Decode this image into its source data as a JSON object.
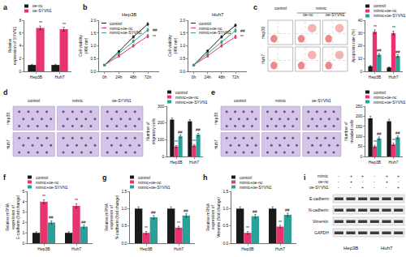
{
  "chart_data": [
    {
      "panel": "a",
      "type": "bar",
      "y_label": "Relative expression of SYVN1",
      "categories": [
        "Hep3B",
        "Huh7"
      ],
      "series": [
        {
          "name": "oe-nc",
          "color": "#1a1a1a",
          "values": [
            1.0,
            1.0
          ],
          "errors": [
            0.1,
            0.1
          ]
        },
        {
          "name": "oe-SYVN1",
          "color": "#e8336e",
          "values": [
            6.8,
            6.6
          ],
          "errors": [
            0.3,
            0.3
          ],
          "significance": [
            "**",
            "**"
          ]
        }
      ],
      "ylim": [
        0,
        8
      ],
      "yticks": [
        0,
        2,
        4,
        6,
        8
      ],
      "grid": false,
      "legend": "top"
    },
    {
      "panel": "b",
      "type": "line",
      "title": "Hep3B",
      "y_label": "Cell viability (490 nm)",
      "categories": [
        "0h",
        "24h",
        "48h",
        "72h"
      ],
      "series": [
        {
          "name": "control",
          "color": "#1a1a1a",
          "values": [
            0.25,
            0.78,
            1.35,
            1.85
          ],
          "errors": [
            0.02,
            0.04,
            0.05,
            0.06
          ]
        },
        {
          "name": "mimic+oe-nc",
          "color": "#e8336e",
          "values": [
            0.25,
            0.6,
            1.0,
            1.38
          ],
          "errors": [
            0.02,
            0.04,
            0.05,
            0.06
          ],
          "significance": [
            null,
            null,
            null,
            "**"
          ]
        },
        {
          "name": "mimic+oe-SYVN1",
          "color": "#2aa198",
          "values": [
            0.25,
            0.7,
            1.18,
            1.62
          ],
          "errors": [
            0.02,
            0.04,
            0.05,
            0.06
          ],
          "significance": [
            null,
            null,
            null,
            "##"
          ]
        }
      ],
      "ylim": [
        0,
        2
      ],
      "yticks": [
        {
          "value": 0,
          "label": "0.0"
        },
        0.5,
        {
          "value": 1,
          "label": "1.0"
        },
        1.5,
        {
          "value": 2,
          "label": "2.0"
        }
      ],
      "grid": false,
      "legend": "top left",
      "marker": "circle"
    },
    {
      "type": "line",
      "title": "Huh7",
      "y_label": "Cell viability (490 nm)",
      "categories": [
        "0h",
        "24h",
        "48h",
        "72h"
      ],
      "series": [
        {
          "name": "control",
          "color": "#1a1a1a",
          "values": [
            0.25,
            0.8,
            1.35,
            1.8
          ],
          "errors": [
            0.02,
            0.04,
            0.05,
            0.06
          ]
        },
        {
          "name": "mimic+oe-nc",
          "color": "#e8336e",
          "values": [
            0.25,
            0.6,
            1.0,
            1.35
          ],
          "errors": [
            0.02,
            0.04,
            0.05,
            0.06
          ],
          "significance": [
            null,
            null,
            null,
            "**"
          ]
        },
        {
          "name": "mimic+oe-SYVN1",
          "color": "#2aa198",
          "values": [
            0.25,
            0.7,
            1.15,
            1.6
          ],
          "errors": [
            0.02,
            0.04,
            0.05,
            0.06
          ],
          "significance": [
            null,
            null,
            null,
            "##"
          ]
        }
      ],
      "ylim": [
        0,
        2
      ],
      "yticks": [
        {
          "value": 0,
          "label": "0.0"
        },
        0.5,
        {
          "value": 1,
          "label": "1.0"
        },
        1.5,
        {
          "value": 2,
          "label": "2.0"
        }
      ],
      "grid": false,
      "legend": "top left",
      "marker": "circle"
    },
    {
      "panel": "c",
      "type": "bar",
      "y_label": "Apoptosis rate (%)",
      "categories": [
        "Hep3B",
        "Huh7"
      ],
      "series": [
        {
          "name": "control",
          "color": "#1a1a1a",
          "values": [
            4,
            3
          ],
          "errors": [
            0.6,
            0.5
          ]
        },
        {
          "name": "mimic+oe-nc",
          "color": "#e8336e",
          "values": [
            31,
            30
          ],
          "errors": [
            1.5,
            1.5
          ],
          "significance": [
            "**",
            "**"
          ]
        },
        {
          "name": "mimic+oe-SYVN1",
          "color": "#2aa198",
          "values": [
            13,
            12
          ],
          "errors": [
            1.0,
            1.0
          ],
          "significance": [
            "##",
            "##"
          ]
        }
      ],
      "ylim": [
        0,
        40
      ],
      "yticks": [
        0,
        10,
        20,
        30,
        40
      ],
      "grid": false,
      "legend": "top"
    },
    {
      "panel": "d",
      "type": "bar",
      "y_label": "Number of migratory cells",
      "categories": [
        "Hep3B",
        "Huh7"
      ],
      "series": [
        {
          "name": "control",
          "color": "#1a1a1a",
          "values": [
            220,
            210
          ],
          "errors": [
            10,
            10
          ]
        },
        {
          "name": "mimic+oe-nc",
          "color": "#e8336e",
          "values": [
            60,
            65
          ],
          "errors": [
            6,
            6
          ],
          "significance": [
            "**",
            "**"
          ]
        },
        {
          "name": "mimic+oe-SYVN1",
          "color": "#2aa198",
          "values": [
            120,
            130
          ],
          "errors": [
            8,
            8
          ],
          "significance": [
            "##",
            "##"
          ]
        }
      ],
      "ylim": [
        0,
        300
      ],
      "yticks": [
        0,
        100,
        200,
        300
      ],
      "grid": false,
      "legend": "top"
    },
    {
      "panel": "e",
      "type": "bar",
      "y_label": "Number of invaded cells",
      "categories": [
        "Hep3B",
        "Huh7"
      ],
      "series": [
        {
          "name": "control",
          "color": "#1a1a1a",
          "values": [
            190,
            175
          ],
          "errors": [
            10,
            10
          ]
        },
        {
          "name": "mimic+oe-nc",
          "color": "#e8336e",
          "values": [
            50,
            60
          ],
          "errors": [
            6,
            6
          ],
          "significance": [
            "**",
            "**"
          ]
        },
        {
          "name": "mimic+oe-SYVN1",
          "color": "#2aa198",
          "values": [
            90,
            95
          ],
          "errors": [
            7,
            7
          ],
          "significance": [
            "##",
            "##"
          ]
        }
      ],
      "ylim": [
        0,
        250
      ],
      "yticks": [
        0,
        50,
        100,
        150,
        200,
        250
      ],
      "grid": false,
      "legend": "top"
    },
    {
      "panel": "f",
      "type": "bar",
      "y_label": "Relative mRNA expression of E-cadherin (fold change)",
      "categories": [
        "Hep3B",
        "Huh7"
      ],
      "series": [
        {
          "name": "control",
          "color": "#1a1a1a",
          "values": [
            1.0,
            1.0
          ],
          "errors": [
            0.1,
            0.1
          ]
        },
        {
          "name": "mimic+oe-nc",
          "color": "#e8336e",
          "values": [
            4.0,
            3.6
          ],
          "errors": [
            0.2,
            0.2
          ],
          "significance": [
            "**",
            "**"
          ]
        },
        {
          "name": "mimic+oe-SYVN1",
          "color": "#2aa198",
          "values": [
            2.0,
            1.6
          ],
          "errors": [
            0.15,
            0.15
          ],
          "significance": [
            "##",
            "##"
          ]
        }
      ],
      "ylim": [
        0,
        5
      ],
      "yticks": [
        0,
        1,
        2,
        3,
        4,
        5
      ],
      "grid": false,
      "legend": "top"
    },
    {
      "panel": "g",
      "type": "bar",
      "y_label": "Relative mRNA expression of N-cadherin (fold change)",
      "categories": [
        "Hep3B",
        "Huh7"
      ],
      "series": [
        {
          "name": "control",
          "color": "#1a1a1a",
          "values": [
            1.0,
            1.0
          ],
          "errors": [
            0.05,
            0.05
          ]
        },
        {
          "name": "mimic+oe-nc",
          "color": "#e8336e",
          "values": [
            0.3,
            0.45
          ],
          "errors": [
            0.04,
            0.04
          ],
          "significance": [
            "**",
            "**"
          ]
        },
        {
          "name": "mimic+oe-SYVN1",
          "color": "#2aa198",
          "values": [
            0.75,
            0.8
          ],
          "errors": [
            0.05,
            0.05
          ],
          "significance": [
            "##",
            "##"
          ]
        }
      ],
      "ylim": [
        0,
        1.5
      ],
      "yticks": [
        {
          "value": 0,
          "label": "0.0"
        },
        0.5,
        {
          "value": 1,
          "label": "1.0"
        },
        1.5
      ],
      "grid": false,
      "legend": "top"
    },
    {
      "panel": "h",
      "type": "bar",
      "y_label": "Relative mRNA expression of Vimentin (fold change)",
      "categories": [
        "Hep3B",
        "Huh7"
      ],
      "series": [
        {
          "name": "control",
          "color": "#1a1a1a",
          "values": [
            1.0,
            1.0
          ],
          "errors": [
            0.05,
            0.05
          ]
        },
        {
          "name": "mimic+oe-nc",
          "color": "#e8336e",
          "values": [
            0.3,
            0.48
          ],
          "errors": [
            0.04,
            0.04
          ],
          "significance": [
            "**",
            "**"
          ]
        },
        {
          "name": "mimic+oe-SYVN1",
          "color": "#2aa198",
          "values": [
            0.78,
            0.82
          ],
          "errors": [
            0.05,
            0.05
          ],
          "significance": [
            "##",
            "##"
          ]
        }
      ],
      "ylim": [
        0,
        1.5
      ],
      "yticks": [
        {
          "value": 0,
          "label": "0.0"
        },
        0.5,
        {
          "value": 1,
          "label": "1.0"
        },
        1.5
      ],
      "grid": false,
      "legend": "top"
    }
  ],
  "images": [
    {
      "panel": "c",
      "type": "flow_cytometry",
      "header": "mimic",
      "columns": [
        "control",
        "oe-nc",
        "oe-SYVN1"
      ],
      "rows": [
        "Hep3B",
        "Huh7"
      ]
    },
    {
      "panel": "d",
      "type": "micrograph",
      "columns": [
        "control",
        "mimic",
        "oe-SYVN1"
      ],
      "rows": [
        "Hep3B",
        "Huh7"
      ]
    },
    {
      "panel": "e",
      "type": "micrograph",
      "columns": [
        "control",
        "mimic",
        "oe-SYVN1"
      ],
      "rows": [
        "Hep3B",
        "Huh7"
      ]
    },
    {
      "panel": "i",
      "type": "western_blot",
      "conditions": [
        {
          "name": "mimic",
          "signs": [
            "-",
            "+",
            "+",
            "-",
            "+",
            "+"
          ]
        },
        {
          "name": "oe-nc",
          "signs": [
            "-",
            "+",
            "-",
            "-",
            "+",
            "-"
          ]
        },
        {
          "name": "oe-SYVN1",
          "signs": [
            "-",
            "-",
            "+",
            "-",
            "-",
            "+"
          ]
        }
      ],
      "proteins": [
        "E-cadherin",
        "N-cadherin",
        "Vimentin",
        "GAPDH"
      ],
      "cells": [
        "Hep3B",
        "Huh7"
      ]
    }
  ]
}
